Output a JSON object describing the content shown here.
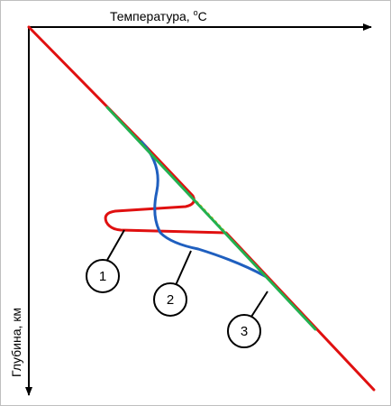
{
  "labels": {
    "x_axis": "Температура, ",
    "x_axis_sup": "o",
    "x_axis_unit": "C",
    "y_axis": "Глубина, км"
  },
  "callouts": [
    {
      "id": "1",
      "label": "1"
    },
    {
      "id": "2",
      "label": "2"
    },
    {
      "id": "3",
      "label": "3"
    }
  ],
  "colors": {
    "red_curve": "#e01010",
    "blue_curve": "#1f5fbf",
    "green_curve": "#22b050",
    "dotted_link": "#f2b400",
    "axes": "#000000"
  }
}
